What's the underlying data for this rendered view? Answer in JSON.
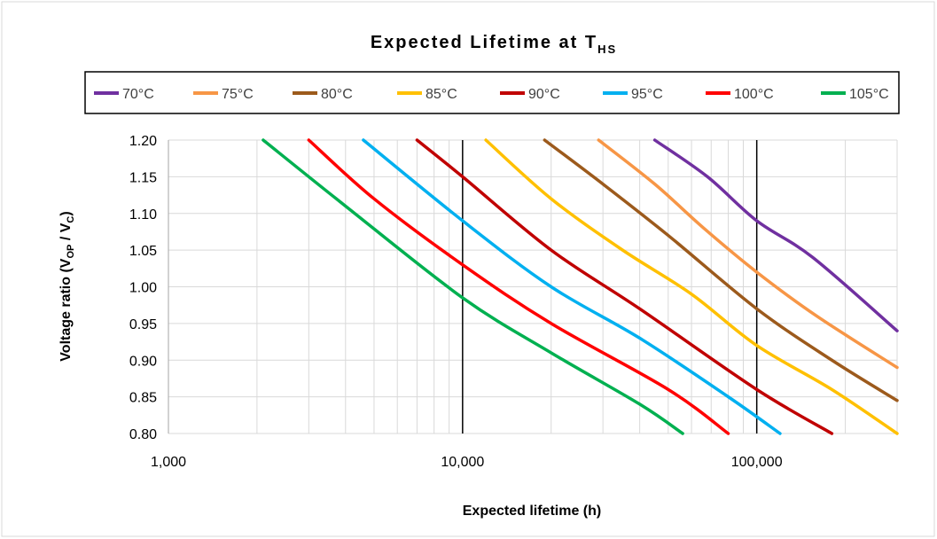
{
  "chart_data": {
    "type": "line",
    "title": "Expected Lifetime at T",
    "title_subscript": "HS",
    "xlabel": "Expected lifetime (h)",
    "ylabel": "Voltage ratio (V",
    "ylabel_sub1": "OP",
    "ylabel_mid": " / V",
    "ylabel_sub2": "C",
    "ylabel_end": ")",
    "x_scale": "log",
    "xlim": [
      1000,
      300000
    ],
    "ylim": [
      0.8,
      1.2
    ],
    "x_ticks": [
      {
        "value": 1000,
        "label": "1,000"
      },
      {
        "value": 10000,
        "label": "10,000"
      },
      {
        "value": 100000,
        "label": "100,000"
      }
    ],
    "y_ticks": [
      {
        "value": 0.8,
        "label": "0.80"
      },
      {
        "value": 0.85,
        "label": "0.85"
      },
      {
        "value": 0.9,
        "label": "0.90"
      },
      {
        "value": 0.95,
        "label": "0.95"
      },
      {
        "value": 1.0,
        "label": "1.00"
      },
      {
        "value": 1.05,
        "label": "1.05"
      },
      {
        "value": 1.1,
        "label": "1.10"
      },
      {
        "value": 1.15,
        "label": "1.15"
      },
      {
        "value": 1.2,
        "label": "1.20"
      }
    ],
    "grid": true,
    "reference_lines_x": [
      10000,
      100000
    ],
    "legend_position": "top",
    "series": [
      {
        "name": "70°C",
        "color": "#7030A0",
        "x": [
          45000,
          68000,
          100000,
          155000,
          300000
        ],
        "y": [
          1.2,
          1.15,
          1.09,
          1.04,
          0.94
        ]
      },
      {
        "name": "75°C",
        "color": "#F79646",
        "x": [
          29000,
          45000,
          66000,
          100000,
          160000,
          300000
        ],
        "y": [
          1.2,
          1.14,
          1.08,
          1.02,
          0.96,
          0.89
        ]
      },
      {
        "name": "80°C",
        "color": "#9C5A1C",
        "x": [
          19000,
          30000,
          50000,
          100000,
          180000,
          300000
        ],
        "y": [
          1.2,
          1.14,
          1.07,
          0.97,
          0.9,
          0.845
        ]
      },
      {
        "name": "85°C",
        "color": "#FFC000",
        "x": [
          12000,
          20000,
          35000,
          60000,
          100000,
          180000,
          300000
        ],
        "y": [
          1.2,
          1.12,
          1.05,
          0.99,
          0.92,
          0.86,
          0.8
        ]
      },
      {
        "name": "90°C",
        "color": "#C00000",
        "x": [
          7000,
          10000,
          20000,
          40000,
          100000,
          180000
        ],
        "y": [
          1.2,
          1.15,
          1.05,
          0.97,
          0.86,
          0.8
        ]
      },
      {
        "name": "95°C",
        "color": "#00B0F0",
        "x": [
          4600,
          10000,
          20000,
          40000,
          80000,
          120000
        ],
        "y": [
          1.2,
          1.09,
          1.0,
          0.93,
          0.85,
          0.8
        ]
      },
      {
        "name": "100°C",
        "color": "#FF0000",
        "x": [
          3000,
          5000,
          10000,
          20000,
          50000,
          80000
        ],
        "y": [
          1.2,
          1.12,
          1.03,
          0.95,
          0.86,
          0.8
        ]
      },
      {
        "name": "105°C",
        "color": "#00B050",
        "x": [
          2100,
          4000,
          10000,
          20000,
          40000,
          56000
        ],
        "y": [
          1.2,
          1.11,
          0.985,
          0.91,
          0.84,
          0.8
        ]
      }
    ]
  }
}
